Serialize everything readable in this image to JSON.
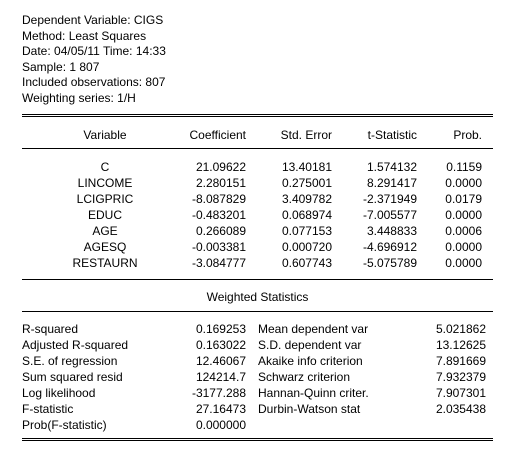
{
  "header": {
    "dependent_variable": "Dependent Variable: CIGS",
    "method": "Method: Least Squares",
    "date_time": "Date: 04/05/11   Time: 14:33",
    "sample": "Sample: 1 807",
    "included_observations": "Included observations: 807",
    "weighting_series": "Weighting series: 1/H"
  },
  "coef_table": {
    "columns": [
      "Variable",
      "Coefficient",
      "Std. Error",
      "t-Statistic",
      "Prob."
    ],
    "rows": [
      [
        "C",
        "21.09622",
        "13.40181",
        "1.574132",
        "0.1159"
      ],
      [
        "LINCOME",
        "2.280151",
        "0.275001",
        "8.291417",
        "0.0000"
      ],
      [
        "LCIGPRIC",
        "-8.087829",
        "3.409782",
        "-2.371949",
        "0.0179"
      ],
      [
        "EDUC",
        "-0.483201",
        "0.068974",
        "-7.005577",
        "0.0000"
      ],
      [
        "AGE",
        "0.266089",
        "0.077153",
        "3.448833",
        "0.0006"
      ],
      [
        "AGESQ",
        "-0.003381",
        "0.000720",
        "-4.696912",
        "0.0000"
      ],
      [
        "RESTAURN",
        "-3.084777",
        "0.607743",
        "-5.075789",
        "0.0000"
      ]
    ]
  },
  "weighted_statistics": {
    "title": "Weighted Statistics",
    "left": [
      [
        "R-squared",
        "0.169253"
      ],
      [
        "Adjusted R-squared",
        "0.163022"
      ],
      [
        "S.E. of regression",
        "12.46067"
      ],
      [
        "Sum squared resid",
        "124214.7"
      ],
      [
        "Log likelihood",
        "-3177.288"
      ],
      [
        "F-statistic",
        "27.16473"
      ],
      [
        "Prob(F-statistic)",
        "0.000000"
      ]
    ],
    "right": [
      [
        "Mean dependent var",
        "5.021862"
      ],
      [
        "S.D. dependent var",
        "13.12625"
      ],
      [
        "Akaike info criterion",
        "7.891669"
      ],
      [
        "Schwarz criterion",
        "7.932379"
      ],
      [
        "Hannan-Quinn criter.",
        "7.907301"
      ],
      [
        "Durbin-Watson stat",
        "2.035438"
      ]
    ]
  }
}
